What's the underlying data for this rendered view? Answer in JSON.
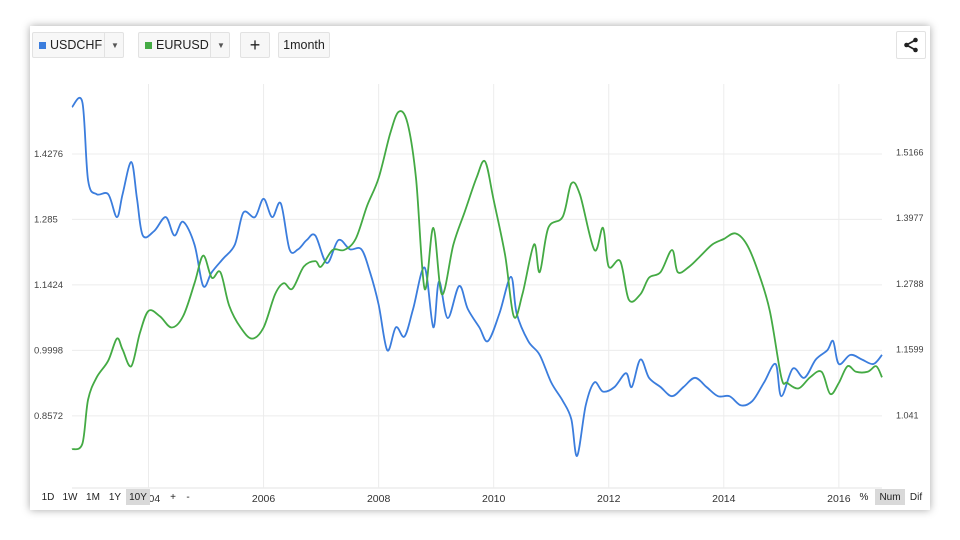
{
  "toolbar": {
    "series1": {
      "label": "USDCHF",
      "color": "#3b7ddd",
      "icon": "chevron-down-icon"
    },
    "series2": {
      "label": "EURUSD",
      "color": "#44aa44",
      "icon": "chevron-down-icon"
    },
    "add_label": "+",
    "interval_label": "1month",
    "share_icon": "share-icon"
  },
  "range_buttons": [
    "1D",
    "1W",
    "1M",
    "1Y",
    "10Y"
  ],
  "zoom_buttons": [
    "+",
    "-"
  ],
  "mode_buttons": [
    "%",
    "Num",
    "Dif"
  ],
  "chart_data": {
    "type": "line",
    "x_range": [
      2002.67,
      2016.75
    ],
    "x_ticks": [
      "2004",
      "2006",
      "2008",
      "2010",
      "2012",
      "2014",
      "2016"
    ],
    "left_axis": {
      "ticks": [
        "1.4276",
        "1.285",
        "1.1424",
        "0.9998",
        "0.8572"
      ],
      "ylim": [
        0.7,
        1.58
      ]
    },
    "right_axis": {
      "ticks": [
        "1.5166",
        "1.3977",
        "1.2788",
        "1.1599",
        "1.041"
      ],
      "ylim": [
        0.91,
        1.64
      ]
    },
    "series": [
      {
        "name": "USDCHF",
        "axis": "left",
        "color": "#3b7ddd",
        "points": [
          [
            2002.67,
            1.53
          ],
          [
            2002.85,
            1.54
          ],
          [
            2002.95,
            1.37
          ],
          [
            2003.1,
            1.34
          ],
          [
            2003.3,
            1.34
          ],
          [
            2003.45,
            1.29
          ],
          [
            2003.55,
            1.34
          ],
          [
            2003.7,
            1.41
          ],
          [
            2003.8,
            1.33
          ],
          [
            2003.9,
            1.25
          ],
          [
            2004.1,
            1.26
          ],
          [
            2004.3,
            1.29
          ],
          [
            2004.45,
            1.25
          ],
          [
            2004.6,
            1.28
          ],
          [
            2004.8,
            1.23
          ],
          [
            2004.95,
            1.14
          ],
          [
            2005.1,
            1.17
          ],
          [
            2005.3,
            1.2
          ],
          [
            2005.5,
            1.23
          ],
          [
            2005.65,
            1.3
          ],
          [
            2005.85,
            1.29
          ],
          [
            2006.0,
            1.33
          ],
          [
            2006.15,
            1.29
          ],
          [
            2006.3,
            1.32
          ],
          [
            2006.45,
            1.22
          ],
          [
            2006.6,
            1.22
          ],
          [
            2006.75,
            1.24
          ],
          [
            2006.9,
            1.25
          ],
          [
            2007.1,
            1.19
          ],
          [
            2007.3,
            1.24
          ],
          [
            2007.5,
            1.22
          ],
          [
            2007.7,
            1.22
          ],
          [
            2007.85,
            1.17
          ],
          [
            2008.0,
            1.1
          ],
          [
            2008.15,
            1.0
          ],
          [
            2008.3,
            1.05
          ],
          [
            2008.45,
            1.03
          ],
          [
            2008.6,
            1.09
          ],
          [
            2008.8,
            1.18
          ],
          [
            2008.95,
            1.05
          ],
          [
            2009.05,
            1.15
          ],
          [
            2009.2,
            1.07
          ],
          [
            2009.4,
            1.14
          ],
          [
            2009.55,
            1.09
          ],
          [
            2009.75,
            1.05
          ],
          [
            2009.9,
            1.02
          ],
          [
            2010.1,
            1.08
          ],
          [
            2010.3,
            1.16
          ],
          [
            2010.4,
            1.08
          ],
          [
            2010.6,
            1.02
          ],
          [
            2010.8,
            0.99
          ],
          [
            2011.0,
            0.93
          ],
          [
            2011.2,
            0.89
          ],
          [
            2011.35,
            0.85
          ],
          [
            2011.45,
            0.77
          ],
          [
            2011.6,
            0.88
          ],
          [
            2011.75,
            0.93
          ],
          [
            2011.9,
            0.91
          ],
          [
            2012.1,
            0.92
          ],
          [
            2012.3,
            0.95
          ],
          [
            2012.4,
            0.92
          ],
          [
            2012.55,
            0.98
          ],
          [
            2012.7,
            0.94
          ],
          [
            2012.9,
            0.92
          ],
          [
            2013.1,
            0.9
          ],
          [
            2013.3,
            0.92
          ],
          [
            2013.5,
            0.94
          ],
          [
            2013.7,
            0.92
          ],
          [
            2013.9,
            0.9
          ],
          [
            2014.1,
            0.9
          ],
          [
            2014.3,
            0.88
          ],
          [
            2014.5,
            0.89
          ],
          [
            2014.7,
            0.93
          ],
          [
            2014.9,
            0.97
          ],
          [
            2015.0,
            0.9
          ],
          [
            2015.2,
            0.96
          ],
          [
            2015.4,
            0.94
          ],
          [
            2015.6,
            0.98
          ],
          [
            2015.8,
            1.0
          ],
          [
            2015.9,
            1.02
          ],
          [
            2016.0,
            0.97
          ],
          [
            2016.2,
            0.99
          ],
          [
            2016.4,
            0.98
          ],
          [
            2016.6,
            0.97
          ],
          [
            2016.75,
            0.99
          ]
        ]
      },
      {
        "name": "EURUSD",
        "axis": "right",
        "color": "#44aa44",
        "points": [
          [
            2002.67,
            0.98
          ],
          [
            2002.85,
            0.99
          ],
          [
            2002.95,
            1.07
          ],
          [
            2003.1,
            1.11
          ],
          [
            2003.3,
            1.14
          ],
          [
            2003.45,
            1.18
          ],
          [
            2003.55,
            1.16
          ],
          [
            2003.7,
            1.13
          ],
          [
            2003.85,
            1.19
          ],
          [
            2004.0,
            1.23
          ],
          [
            2004.2,
            1.22
          ],
          [
            2004.4,
            1.2
          ],
          [
            2004.6,
            1.22
          ],
          [
            2004.8,
            1.28
          ],
          [
            2004.95,
            1.33
          ],
          [
            2005.1,
            1.29
          ],
          [
            2005.25,
            1.3
          ],
          [
            2005.4,
            1.24
          ],
          [
            2005.6,
            1.2
          ],
          [
            2005.8,
            1.18
          ],
          [
            2006.0,
            1.2
          ],
          [
            2006.2,
            1.26
          ],
          [
            2006.35,
            1.28
          ],
          [
            2006.5,
            1.27
          ],
          [
            2006.7,
            1.31
          ],
          [
            2006.9,
            1.32
          ],
          [
            2007.0,
            1.31
          ],
          [
            2007.2,
            1.34
          ],
          [
            2007.4,
            1.34
          ],
          [
            2007.6,
            1.36
          ],
          [
            2007.8,
            1.42
          ],
          [
            2008.0,
            1.47
          ],
          [
            2008.2,
            1.55
          ],
          [
            2008.35,
            1.59
          ],
          [
            2008.5,
            1.57
          ],
          [
            2008.65,
            1.47
          ],
          [
            2008.8,
            1.27
          ],
          [
            2008.95,
            1.38
          ],
          [
            2009.1,
            1.26
          ],
          [
            2009.3,
            1.35
          ],
          [
            2009.5,
            1.41
          ],
          [
            2009.7,
            1.47
          ],
          [
            2009.85,
            1.5
          ],
          [
            2010.0,
            1.43
          ],
          [
            2010.2,
            1.33
          ],
          [
            2010.35,
            1.22
          ],
          [
            2010.5,
            1.26
          ],
          [
            2010.7,
            1.35
          ],
          [
            2010.8,
            1.3
          ],
          [
            2010.95,
            1.38
          ],
          [
            2011.2,
            1.4
          ],
          [
            2011.35,
            1.46
          ],
          [
            2011.5,
            1.44
          ],
          [
            2011.75,
            1.34
          ],
          [
            2011.9,
            1.38
          ],
          [
            2012.0,
            1.31
          ],
          [
            2012.2,
            1.32
          ],
          [
            2012.35,
            1.25
          ],
          [
            2012.55,
            1.26
          ],
          [
            2012.7,
            1.29
          ],
          [
            2012.9,
            1.3
          ],
          [
            2013.1,
            1.34
          ],
          [
            2013.2,
            1.3
          ],
          [
            2013.4,
            1.31
          ],
          [
            2013.6,
            1.33
          ],
          [
            2013.8,
            1.35
          ],
          [
            2014.0,
            1.36
          ],
          [
            2014.2,
            1.37
          ],
          [
            2014.4,
            1.35
          ],
          [
            2014.6,
            1.3
          ],
          [
            2014.8,
            1.23
          ],
          [
            2015.0,
            1.11
          ],
          [
            2015.1,
            1.1
          ],
          [
            2015.3,
            1.09
          ],
          [
            2015.5,
            1.11
          ],
          [
            2015.7,
            1.12
          ],
          [
            2015.85,
            1.08
          ],
          [
            2016.0,
            1.1
          ],
          [
            2016.15,
            1.13
          ],
          [
            2016.3,
            1.12
          ],
          [
            2016.5,
            1.12
          ],
          [
            2016.65,
            1.13
          ],
          [
            2016.75,
            1.11
          ]
        ]
      }
    ]
  }
}
